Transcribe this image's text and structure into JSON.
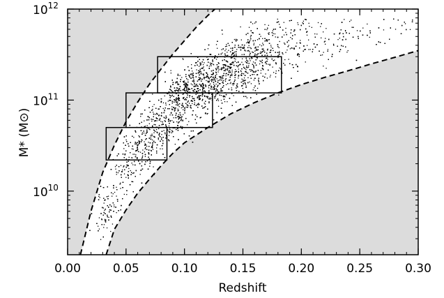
{
  "chart_data": {
    "type": "scatter",
    "title": "",
    "xlabel": "Redshift",
    "ylabel": "M* (M",
    "ylabel_symbol": "⊙",
    "ylabel_close": ")",
    "x_scale": "linear",
    "y_scale": "log",
    "xlim": [
      0.0,
      0.3
    ],
    "ylim": [
      2000000000.0,
      1000000000000.0
    ],
    "x_ticks": [
      {
        "value": 0.0,
        "label": "0.00"
      },
      {
        "value": 0.05,
        "label": "0.05"
      },
      {
        "value": 0.1,
        "label": "0.10"
      },
      {
        "value": 0.15,
        "label": "0.15"
      },
      {
        "value": 0.2,
        "label": "0.20"
      },
      {
        "value": 0.25,
        "label": "0.25"
      },
      {
        "value": 0.3,
        "label": "0.30"
      }
    ],
    "y_ticks": [
      {
        "value": 10000000000.0,
        "base": "10",
        "exp": "10"
      },
      {
        "value": 100000000000.0,
        "base": "10",
        "exp": "11"
      },
      {
        "value": 1000000000000.0,
        "base": "10",
        "exp": "12"
      }
    ],
    "upper_limit_curve": [
      [
        0.011,
        2000000000.0
      ],
      [
        0.02,
        6000000000.0
      ],
      [
        0.03,
        16000000000.0
      ],
      [
        0.04,
        32000000000.0
      ],
      [
        0.05,
        58000000000.0
      ],
      [
        0.06,
        95000000000.0
      ],
      [
        0.07,
        150000000000.0
      ],
      [
        0.08,
        220000000000.0
      ],
      [
        0.09,
        320000000000.0
      ],
      [
        0.1,
        450000000000.0
      ],
      [
        0.11,
        630000000000.0
      ],
      [
        0.12,
        850000000000.0
      ],
      [
        0.126,
        1000000000000.0
      ]
    ],
    "lower_limit_curve": [
      [
        0.033,
        2000000000.0
      ],
      [
        0.04,
        3800000000.0
      ],
      [
        0.05,
        6200000000.0
      ],
      [
        0.06,
        9500000000.0
      ],
      [
        0.07,
        13500000000.0
      ],
      [
        0.08,
        19000000000.0
      ],
      [
        0.09,
        26000000000.0
      ],
      [
        0.1,
        34000000000.0
      ],
      [
        0.12,
        50000000000.0
      ],
      [
        0.14,
        71000000000.0
      ],
      [
        0.16,
        94000000000.0
      ],
      [
        0.18,
        120000000000.0
      ],
      [
        0.2,
        148000000000.0
      ],
      [
        0.22,
        178000000000.0
      ],
      [
        0.24,
        210000000000.0
      ],
      [
        0.26,
        250000000000.0
      ],
      [
        0.28,
        295000000000.0
      ],
      [
        0.3,
        350000000000.0
      ]
    ],
    "selection_boxes": [
      {
        "x_min": 0.033,
        "x_max": 0.085,
        "y_min": 22000000000.0,
        "y_max": 50000000000.0
      },
      {
        "x_min": 0.05,
        "x_max": 0.124,
        "y_min": 50000000000.0,
        "y_max": 120000000000.0
      },
      {
        "x_min": 0.077,
        "x_max": 0.183,
        "y_min": 120000000000.0,
        "y_max": 300000000000.0
      }
    ],
    "points_note": "dense cloud of several thousand galaxies between the dashed limit curves",
    "colors": {
      "excluded_region": "#dcdcdc",
      "points": "#000000",
      "curves": "#000000",
      "boxes": "#000000"
    },
    "grid": false,
    "legend": "none"
  }
}
